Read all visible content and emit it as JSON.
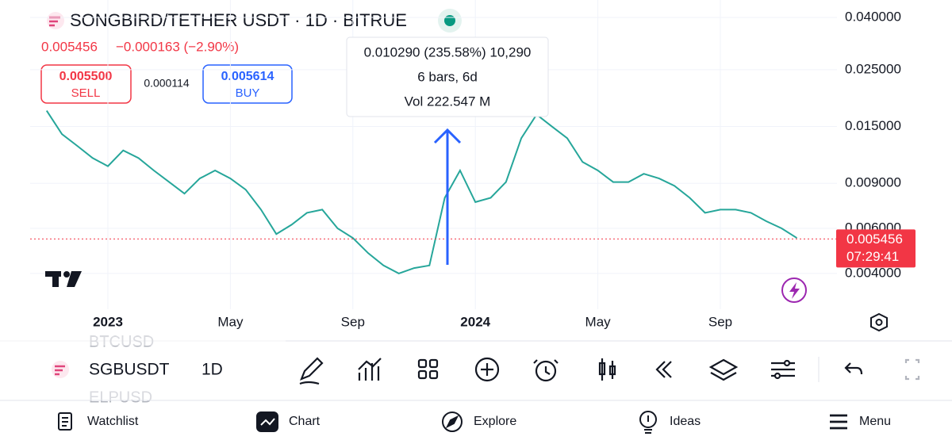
{
  "header": {
    "title": "SONGBIRD/TETHER USDT · 1D · BITRUE",
    "price": "0.005456",
    "change": "−0.000163 (−2.90%)",
    "sell_price": "0.005500",
    "sell_label": "SELL",
    "spread": "0.000114",
    "buy_price": "0.005614",
    "buy_label": "BUY"
  },
  "chart_data": {
    "type": "line",
    "log_scale": true,
    "grid": true,
    "color": "#26a69a",
    "categories": [
      null,
      null,
      null,
      null,
      "2023",
      null,
      null,
      null,
      null,
      null,
      null,
      null,
      "May",
      null,
      null,
      null,
      null,
      null,
      null,
      null,
      "Sep",
      null,
      null,
      null,
      null,
      null,
      null,
      null,
      "2024",
      null,
      null,
      null,
      null,
      null,
      null,
      null,
      "May",
      null,
      null,
      null,
      null,
      null,
      null,
      null,
      "Sep",
      null,
      null,
      null,
      null,
      null
    ],
    "values": [
      0.0173,
      0.014,
      0.0126,
      0.0113,
      0.0105,
      0.0121,
      0.0113,
      0.0101,
      0.0091,
      0.0082,
      0.0094,
      0.0101,
      0.0094,
      0.0085,
      0.0071,
      0.0057,
      0.0062,
      0.0069,
      0.0071,
      0.006,
      0.0055,
      0.0048,
      0.0043,
      0.004,
      0.0042,
      0.0043,
      0.0079,
      0.0101,
      0.0076,
      0.0079,
      0.0091,
      0.0135,
      0.0167,
      0.015,
      0.0135,
      0.0109,
      0.0101,
      0.0091,
      0.0091,
      0.0098,
      0.0094,
      0.0088,
      0.0079,
      0.0069,
      0.0071,
      0.0071,
      0.0069,
      0.0064,
      0.006,
      0.0055
    ],
    "ylim": [
      0.0029,
      0.0468
    ],
    "yticks": [
      {
        "value": 0.004,
        "label": "0.004000"
      },
      {
        "value": 0.006,
        "label": "0.006000"
      },
      {
        "value": 0.009,
        "label": "0.009000"
      },
      {
        "value": 0.015,
        "label": "0.015000"
      },
      {
        "value": 0.025,
        "label": "0.025000"
      },
      {
        "value": 0.04,
        "label": "0.040000"
      }
    ],
    "last_price": 0.005456,
    "countdown": "07:29:41",
    "measure": [
      "0.010290 (235.58%) 10,290",
      "6 bars, 6d",
      "Vol 222.547 M"
    ]
  },
  "toolbar": {
    "symbol": "SGBUSDT",
    "interval": "1D",
    "prev_symbol": "BTCUSD",
    "next_symbol": "ELPUSD"
  },
  "nav": [
    "Watchlist",
    "Chart",
    "Explore",
    "Ideas",
    "Menu"
  ]
}
